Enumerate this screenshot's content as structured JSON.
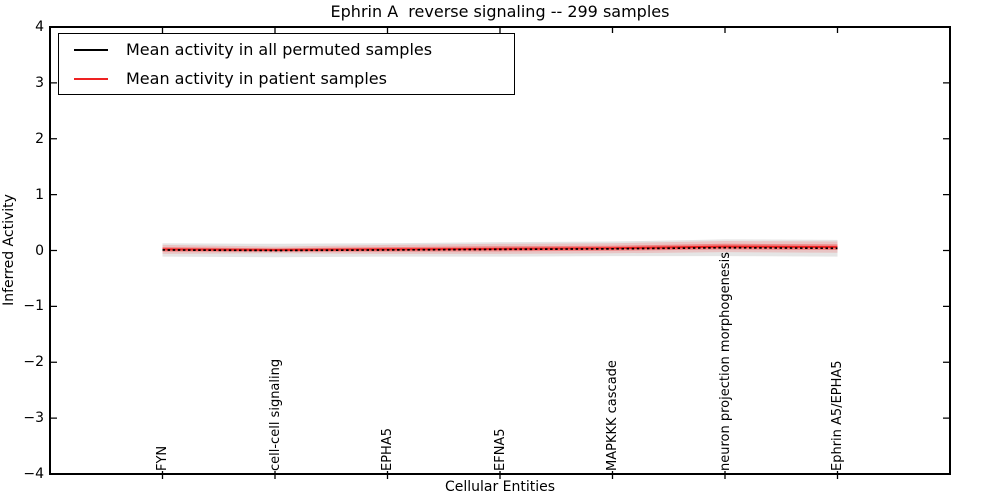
{
  "chart_data": {
    "type": "line",
    "title": "Ephrin A  reverse signaling -- 299 samples",
    "xlabel": "Cellular Entities",
    "ylabel": "Inferred Activity",
    "ylim": [
      -4,
      4
    ],
    "yticks": [
      4,
      3,
      2,
      1,
      0,
      -1,
      -2,
      -3,
      -4
    ],
    "grid": false,
    "legend_position": "upper left",
    "categories": [
      "FYN",
      "cell-cell signaling",
      "EPHA5",
      "EFNA5",
      "MAPKKK cascade",
      "neuron projection morphogenesis",
      "Ephrin A5/EPHA5"
    ],
    "series": [
      {
        "name": "Mean activity in all permuted samples",
        "color": "#000000",
        "style": "dashed",
        "values": [
          0.01,
          0.0,
          0.01,
          0.02,
          0.03,
          0.05,
          0.04
        ]
      },
      {
        "name": "Mean activity in patient samples",
        "color": "#ee2222",
        "style": "solid",
        "values": [
          0.02,
          0.01,
          0.02,
          0.03,
          0.04,
          0.07,
          0.06
        ]
      }
    ],
    "bands": [
      {
        "name": "permuted-band",
        "color": "#000000",
        "opacity": 0.1,
        "upper": [
          0.13,
          0.12,
          0.13,
          0.15,
          0.16,
          0.2,
          0.19
        ],
        "lower": [
          -0.11,
          -0.12,
          -0.11,
          -0.11,
          -0.1,
          -0.1,
          -0.11
        ]
      },
      {
        "name": "patient-band-outer",
        "color": "#ff0000",
        "opacity": 0.14,
        "upper": [
          0.1,
          0.07,
          0.1,
          0.12,
          0.13,
          0.17,
          0.16
        ],
        "lower": [
          -0.06,
          -0.05,
          -0.06,
          -0.06,
          -0.05,
          -0.03,
          -0.04
        ]
      },
      {
        "name": "patient-band-inner",
        "color": "#ff0000",
        "opacity": 0.32,
        "upper": [
          0.06,
          0.04,
          0.06,
          0.075,
          0.085,
          0.12,
          0.11
        ],
        "lower": [
          -0.02,
          -0.02,
          -0.02,
          -0.015,
          -0.005,
          0.02,
          0.01
        ]
      }
    ]
  },
  "legend": {
    "items": [
      {
        "label": "Mean activity in all permuted samples",
        "color": "#000000"
      },
      {
        "label": "Mean activity in patient samples",
        "color": "#ee2222"
      }
    ]
  }
}
